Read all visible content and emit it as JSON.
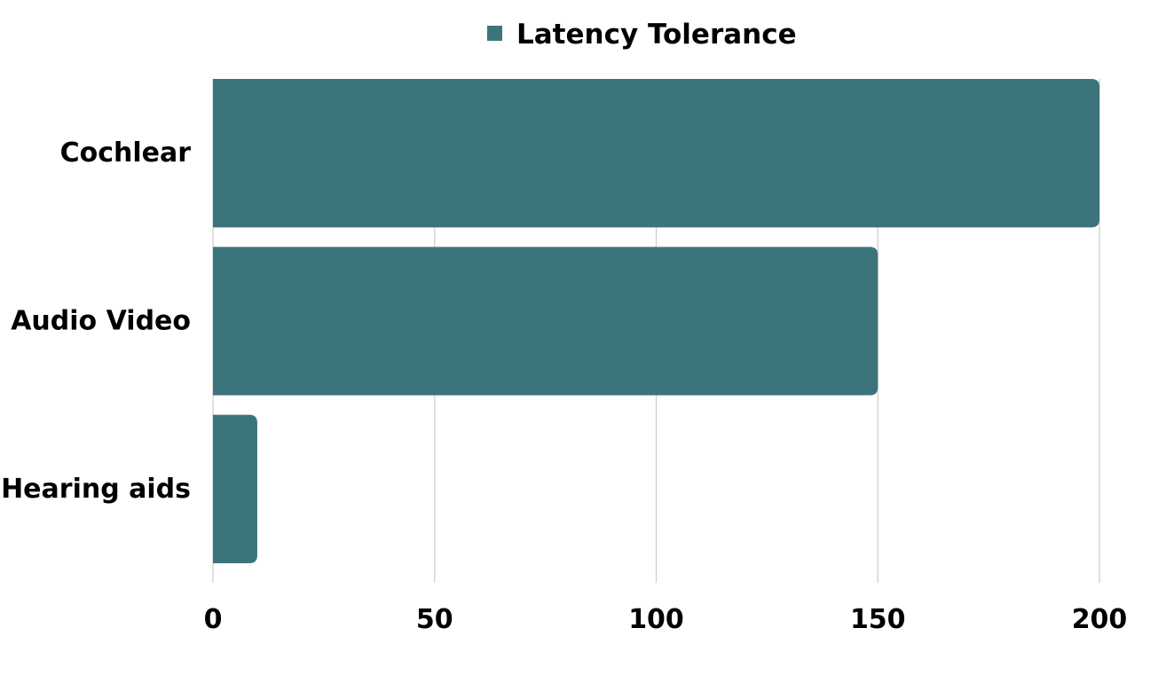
{
  "chart_data": {
    "type": "bar",
    "orientation": "horizontal",
    "title": "",
    "xlabel": "",
    "ylabel": "",
    "categories": [
      "Cochlear",
      "Audio Video",
      "Hearing aids"
    ],
    "series": [
      {
        "name": "Latency Tolerance",
        "values": [
          200,
          150,
          10
        ],
        "color": "#3b747b"
      }
    ],
    "xlim": [
      0,
      200
    ],
    "xticks": [
      0,
      50,
      100,
      150,
      200
    ],
    "grid": "vertical",
    "legend": "top-center"
  }
}
